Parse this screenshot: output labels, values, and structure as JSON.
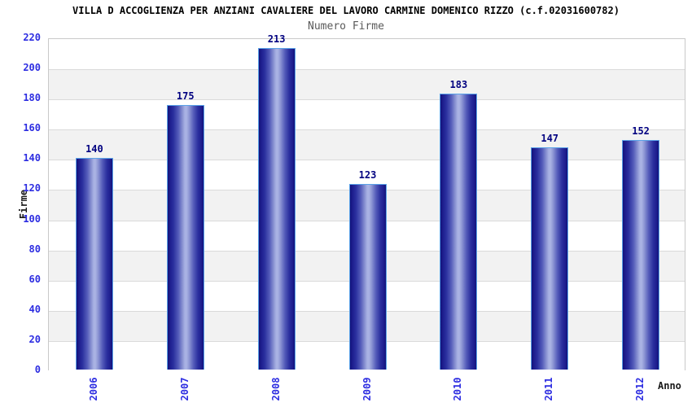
{
  "chart_data": {
    "type": "bar",
    "title": "VILLA D ACCOGLIENZA PER ANZIANI CAVALIERE DEL LAVORO CARMINE DOMENICO RIZZO (c.f.02031600782)",
    "subtitle": "Numero Firme",
    "categories": [
      "2006",
      "2007",
      "2008",
      "2009",
      "2010",
      "2011",
      "2012"
    ],
    "values": [
      140,
      175,
      213,
      123,
      183,
      147,
      152
    ],
    "xlabel": "Anno",
    "ylabel": "Firme",
    "ylim": [
      0,
      220
    ],
    "ytick_step": 20,
    "yticks": [
      0,
      20,
      40,
      60,
      80,
      100,
      120,
      140,
      160,
      180,
      200,
      220
    ],
    "grid": true,
    "legend": "none",
    "colors": {
      "tick_label": "#2d2de1",
      "value_label": "#000080",
      "bar_edge_dark": "#13137a",
      "bar_center_light": "#a9b2e3",
      "bar_border": "#5aa2e8",
      "band_alt": "#f2f2f2",
      "gridline": "#dadada",
      "plot_border": "#c9c9c9",
      "title": "#000000",
      "subtitle": "#5a5a5a",
      "axis_title": "#1a1a1a"
    }
  }
}
